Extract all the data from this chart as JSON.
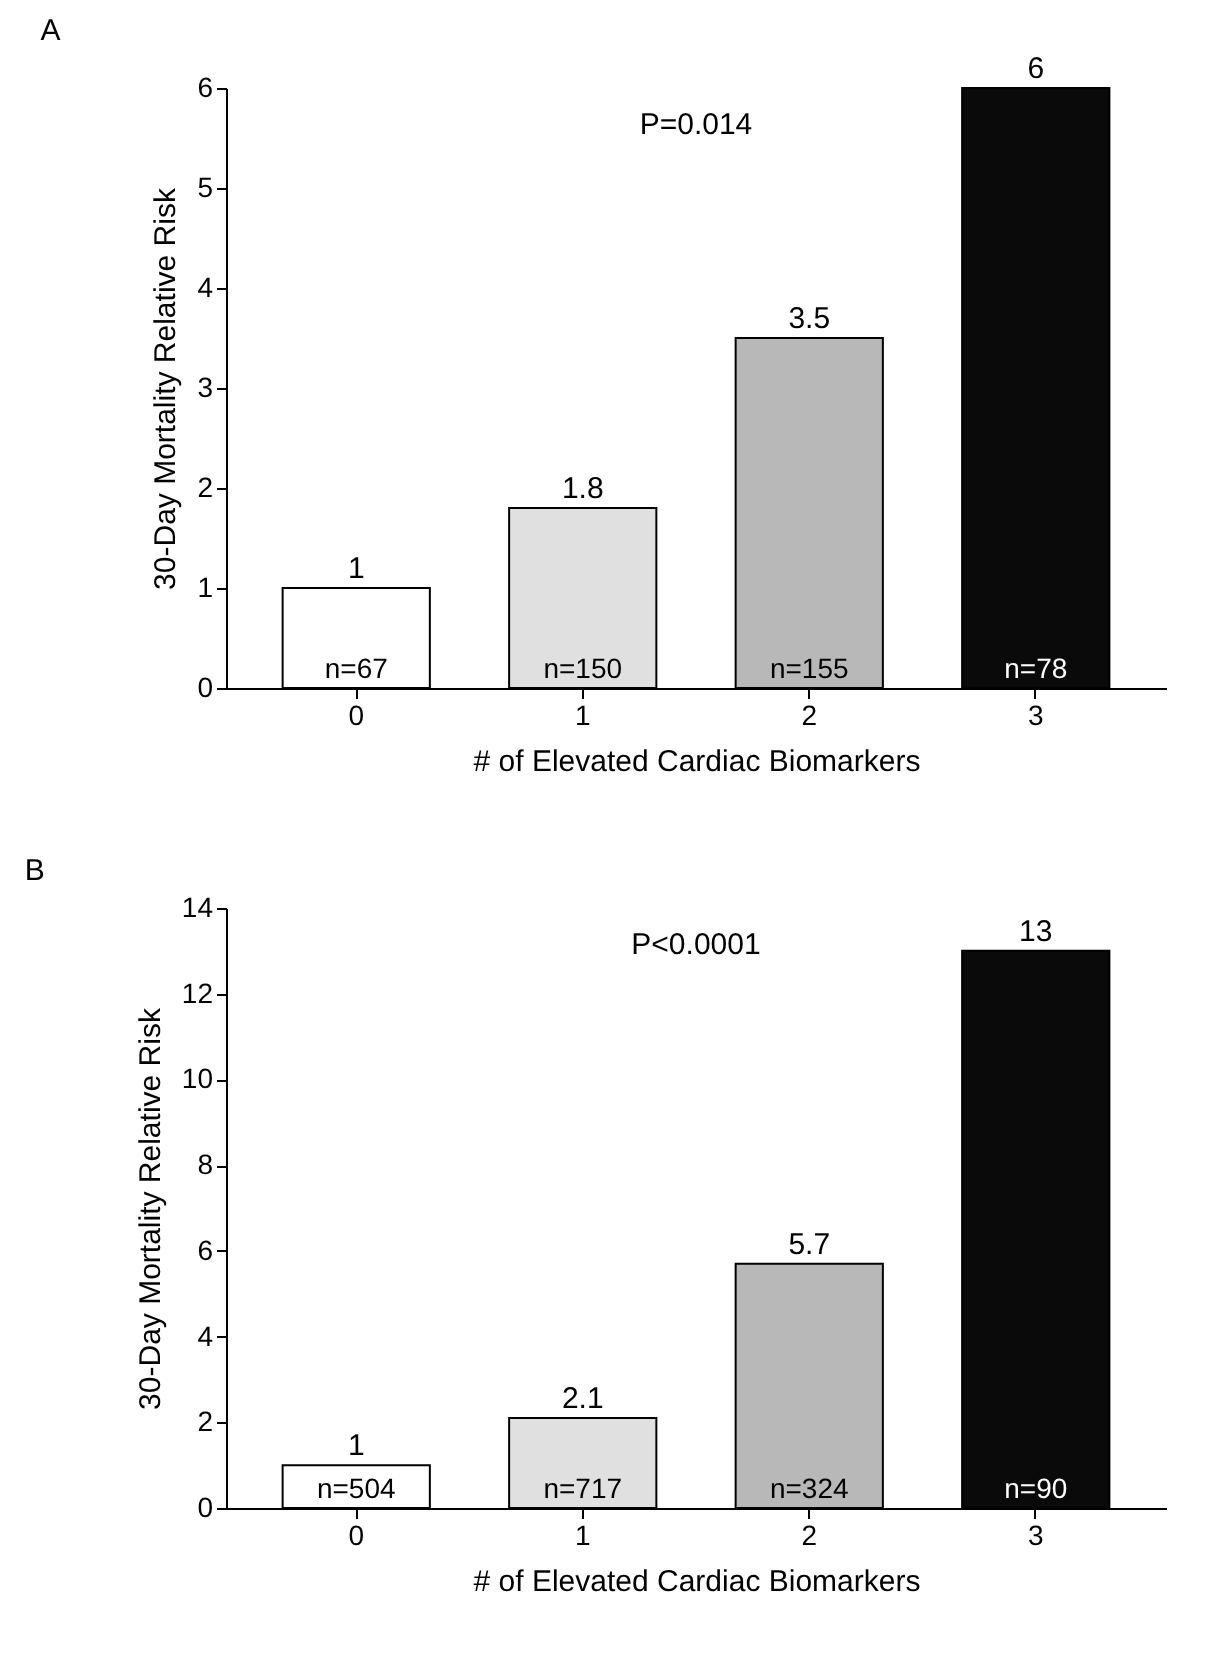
{
  "chart_data": [
    {
      "type": "bar",
      "title": "A",
      "xlabel": "# of Elevated Cardiac Biomarkers",
      "ylabel": "30-Day Mortality Relative Risk",
      "categories": [
        "0",
        "1",
        "2",
        "3"
      ],
      "values": [
        1,
        1.8,
        3.5,
        6
      ],
      "colors": [
        "#ffffff",
        "#e0e0e0",
        "#b8b8b8",
        "#0a0a0a"
      ],
      "ylim": [
        0,
        6
      ],
      "yticks": [
        0,
        1,
        2,
        3,
        4,
        5,
        6
      ],
      "grid": false,
      "data_labels": true,
      "annotations": [
        "P=0.014",
        "n=67",
        "n=150",
        "n=155",
        "n=78"
      ]
    },
    {
      "type": "bar",
      "title": "B",
      "xlabel": "# of Elevated Cardiac Biomarkers",
      "ylabel": "30-Day Mortality Relative Risk",
      "categories": [
        "0",
        "1",
        "2",
        "3"
      ],
      "values": [
        1,
        2.1,
        5.7,
        13
      ],
      "colors": [
        "#ffffff",
        "#e0e0e0",
        "#b8b8b8",
        "#0a0a0a"
      ],
      "ylim": [
        0,
        14
      ],
      "yticks": [
        0,
        2,
        4,
        6,
        8,
        10,
        12,
        14
      ],
      "grid": false,
      "data_labels": true,
      "annotations": [
        "P<0.0001",
        "n=504",
        "n=717",
        "n=324",
        "n=90"
      ]
    }
  ]
}
